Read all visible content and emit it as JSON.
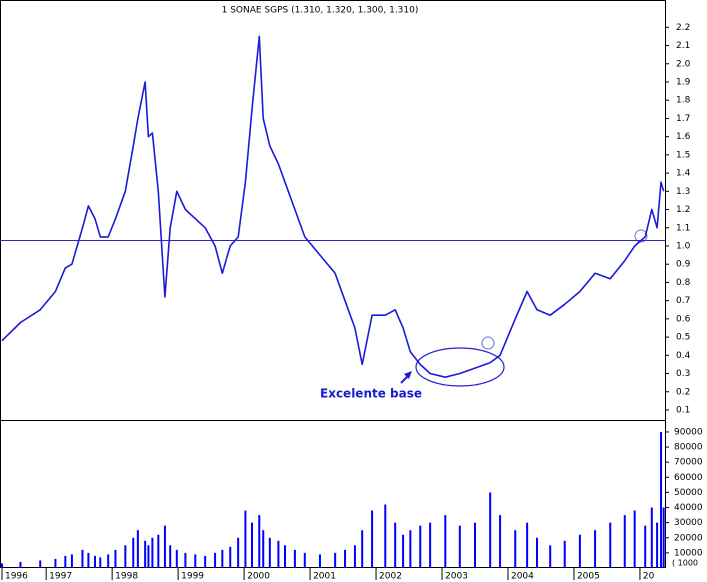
{
  "chart_data": [
    {
      "type": "line",
      "title": "1 SONAE SGPS (1.310, 1.320, 1.300, 1.310)",
      "annotation": "Excelente base",
      "color": "#1a1adc",
      "x": [
        1996.33,
        1996.61,
        1996.91,
        1997.14,
        1997.29,
        1997.39,
        1997.55,
        1997.64,
        1997.74,
        1997.82,
        1997.94,
        1998.05,
        1998.2,
        1998.32,
        1998.39,
        1998.5,
        1998.55,
        1998.61,
        1998.7,
        1998.8,
        1998.88,
        1998.98,
        1999.11,
        1999.26,
        1999.41,
        1999.56,
        1999.67,
        1999.79,
        1999.91,
        2000.02,
        2000.12,
        2000.23,
        2000.29,
        2000.39,
        2000.52,
        2000.62,
        2000.77,
        2000.92,
        2001.15,
        2001.38,
        2001.53,
        2001.68,
        2001.79,
        2001.94,
        2002.14,
        2002.29,
        2002.41,
        2002.52,
        2002.67,
        2002.82,
        2003.05,
        2003.27,
        2003.5,
        2003.73,
        2003.88,
        2004.11,
        2004.29,
        2004.44,
        2004.64,
        2004.86,
        2005.09,
        2005.32,
        2005.55,
        2005.77,
        2005.92,
        2006.08,
        2006.18,
        2006.26,
        2006.32,
        2006.36
      ],
      "values": [
        0.48,
        0.58,
        0.65,
        0.75,
        0.88,
        0.9,
        1.1,
        1.22,
        1.15,
        1.05,
        1.05,
        1.15,
        1.3,
        1.55,
        1.7,
        1.9,
        1.6,
        1.62,
        1.3,
        0.72,
        1.1,
        1.3,
        1.2,
        1.15,
        1.1,
        1.0,
        0.85,
        1.0,
        1.05,
        1.35,
        1.75,
        2.15,
        1.7,
        1.55,
        1.45,
        1.35,
        1.2,
        1.05,
        0.95,
        0.85,
        0.7,
        0.55,
        0.35,
        0.62,
        0.62,
        0.65,
        0.55,
        0.42,
        0.35,
        0.3,
        0.28,
        0.3,
        0.33,
        0.36,
        0.4,
        0.6,
        0.75,
        0.65,
        0.62,
        0.68,
        0.75,
        0.85,
        0.82,
        0.92,
        1.0,
        1.05,
        1.2,
        1.1,
        1.35,
        1.3
      ],
      "hline": 1.03,
      "xlim": [
        1996.3,
        2006.38
      ],
      "xticks": [
        {
          "value": 1996.33,
          "label": "1996"
        },
        1997,
        1998,
        1999,
        2000,
        2001,
        2002,
        2003,
        2004,
        2005,
        {
          "value": 2006,
          "label": "20"
        }
      ],
      "ylim": [
        0.045,
        2.35
      ],
      "yticks": [
        0.1,
        0.2,
        0.3,
        0.4,
        0.5,
        0.6,
        0.7,
        0.8,
        0.9,
        {
          "value": 1,
          "label": "1.0"
        },
        1.1,
        1.2,
        1.3,
        1.4,
        1.5,
        1.6,
        1.7,
        1.8,
        1.9,
        {
          "value": 2,
          "label": "2.0"
        },
        2.1,
        2.2
      ]
    },
    {
      "type": "bar",
      "y_label": "( 1000",
      "color": "#0000ff",
      "x": [
        1996.33,
        1996.61,
        1996.91,
        1997.14,
        1997.29,
        1997.39,
        1997.55,
        1997.64,
        1997.74,
        1997.82,
        1997.94,
        1998.05,
        1998.2,
        1998.32,
        1998.39,
        1998.5,
        1998.55,
        1998.61,
        1998.7,
        1998.8,
        1998.88,
        1998.98,
        1999.11,
        1999.26,
        1999.41,
        1999.56,
        1999.67,
        1999.79,
        1999.91,
        2000.02,
        2000.12,
        2000.23,
        2000.29,
        2000.39,
        2000.52,
        2000.62,
        2000.77,
        2000.92,
        2001.15,
        2001.38,
        2001.53,
        2001.68,
        2001.79,
        2001.94,
        2002.14,
        2002.29,
        2002.41,
        2002.52,
        2002.67,
        2002.82,
        2003.05,
        2003.27,
        2003.5,
        2003.73,
        2003.88,
        2004.11,
        2004.29,
        2004.44,
        2004.64,
        2004.86,
        2005.09,
        2005.32,
        2005.55,
        2005.77,
        2005.92,
        2006.08,
        2006.18,
        2006.26,
        2006.32,
        2006.36
      ],
      "values": [
        3000,
        4000,
        5000,
        6000,
        8000,
        9000,
        12000,
        10000,
        8000,
        7000,
        9000,
        12000,
        15000,
        20000,
        25000,
        18000,
        15000,
        20000,
        22000,
        28000,
        15000,
        12000,
        10000,
        9000,
        8000,
        10000,
        12000,
        14000,
        20000,
        38000,
        30000,
        35000,
        25000,
        20000,
        18000,
        15000,
        12000,
        10000,
        9000,
        10000,
        12000,
        15000,
        25000,
        38000,
        42000,
        30000,
        22000,
        25000,
        28000,
        30000,
        35000,
        28000,
        30000,
        50000,
        35000,
        25000,
        30000,
        20000,
        15000,
        18000,
        22000,
        25000,
        30000,
        35000,
        38000,
        28000,
        40000,
        30000,
        90000,
        40000
      ],
      "xlim": [
        1996.3,
        2006.38
      ],
      "ylim": [
        0,
        97900
      ],
      "yticks": [
        10000,
        20000,
        30000,
        40000,
        50000,
        60000,
        70000,
        80000,
        90000
      ]
    }
  ]
}
